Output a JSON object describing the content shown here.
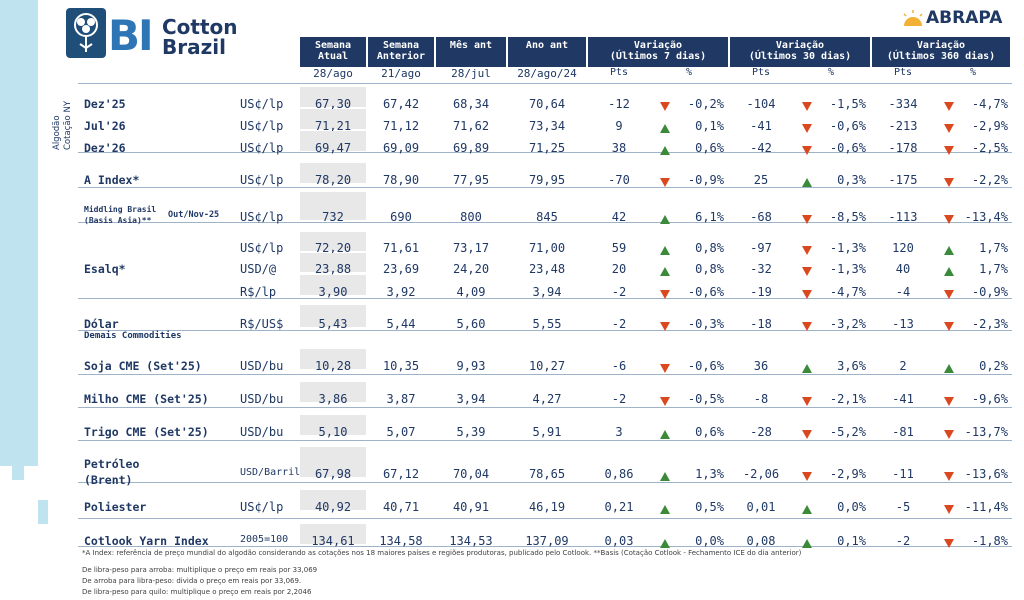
{
  "brand": {
    "logo_bi": "BI",
    "logo_line1": "Cotton",
    "logo_line2": "Brazil",
    "partner": "ABRAPA"
  },
  "side_label": [
    "Algodão",
    "Cotação NY"
  ],
  "columns": {
    "price": [
      {
        "title1": "Semana",
        "title2": "Atual",
        "date": "28/ago"
      },
      {
        "title1": "Semana",
        "title2": "Anterior",
        "date": "21/ago"
      },
      {
        "title1": "Mês ant",
        "title2": "",
        "date": "28/jul"
      },
      {
        "title1": "Ano ant",
        "title2": "",
        "date": "28/ago/24"
      }
    ],
    "variation": [
      {
        "title": "Variação",
        "sub": "(Últimos 7 dias)",
        "pts": "Pts",
        "pct": "%"
      },
      {
        "title": "Variação",
        "sub": "(Últimos 30 dias)",
        "pts": "Pts",
        "pct": "%"
      },
      {
        "title": "Variação",
        "sub": "(Últimos 360 dias)",
        "pts": "Pts",
        "pct": "%"
      }
    ]
  },
  "rows": [
    {
      "label": "Dez'25",
      "unit": "US¢/lp",
      "vals": [
        "67,30",
        "67,42",
        "68,34",
        "70,64"
      ],
      "var": [
        [
          "-12",
          "down",
          "-0,2%"
        ],
        [
          "-104",
          "down",
          "-1,5%"
        ],
        [
          "-334",
          "down",
          "-4,7%"
        ]
      ]
    },
    {
      "label": "Jul'26",
      "unit": "US¢/lp",
      "vals": [
        "71,21",
        "71,12",
        "71,62",
        "73,34"
      ],
      "var": [
        [
          "9",
          "up",
          "0,1%"
        ],
        [
          "-41",
          "down",
          "-0,6%"
        ],
        [
          "-213",
          "down",
          "-2,9%"
        ]
      ]
    },
    {
      "label": "Dez'26",
      "unit": "US¢/lp",
      "vals": [
        "69,47",
        "69,09",
        "69,89",
        "71,25"
      ],
      "var": [
        [
          "38",
          "up",
          "0,6%"
        ],
        [
          "-42",
          "down",
          "-0,6%"
        ],
        [
          "-178",
          "down",
          "-2,5%"
        ]
      ]
    },
    {
      "label": "A Index*",
      "unit": "US¢/lp",
      "vals": [
        "78,20",
        "78,90",
        "77,95",
        "79,95"
      ],
      "var": [
        [
          "-70",
          "down",
          "-0,9%"
        ],
        [
          "25",
          "up",
          "0,3%"
        ],
        [
          "-175",
          "down",
          "-2,2%"
        ]
      ]
    },
    {
      "label": "Middling Brasil",
      "label2": "(Basis Asia)**",
      "label3": "Out/Nov-25",
      "unit": "US¢/lp",
      "vals": [
        "732",
        "690",
        "800",
        "845"
      ],
      "var": [
        [
          "42",
          "up",
          "6,1%"
        ],
        [
          "-68",
          "down",
          "-8,5%"
        ],
        [
          "-113",
          "down",
          "-13,4%"
        ]
      ]
    },
    {
      "label": "",
      "unit": "US¢/lp",
      "vals": [
        "72,20",
        "71,61",
        "73,17",
        "71,00"
      ],
      "var": [
        [
          "59",
          "up",
          "0,8%"
        ],
        [
          "-97",
          "down",
          "-1,3%"
        ],
        [
          "120",
          "up",
          "1,7%"
        ]
      ]
    },
    {
      "label": "Esalq*",
      "unit": "USD/@",
      "vals": [
        "23,88",
        "23,69",
        "24,20",
        "23,48"
      ],
      "var": [
        [
          "20",
          "up",
          "0,8%"
        ],
        [
          "-32",
          "down",
          "-1,3%"
        ],
        [
          "40",
          "up",
          "1,7%"
        ]
      ]
    },
    {
      "label": "",
      "unit": "R$/lp",
      "vals": [
        "3,90",
        "3,92",
        "4,09",
        "3,94"
      ],
      "var": [
        [
          "-2",
          "down",
          "-0,6%"
        ],
        [
          "-19",
          "down",
          "-4,7%"
        ],
        [
          "-4",
          "down",
          "-0,9%"
        ]
      ]
    },
    {
      "label": "Dólar",
      "unit": "R$/US$",
      "vals": [
        "5,43",
        "5,44",
        "5,60",
        "5,55"
      ],
      "var": [
        [
          "-2",
          "down",
          "-0,3%"
        ],
        [
          "-18",
          "down",
          "-3,2%"
        ],
        [
          "-13",
          "down",
          "-2,3%"
        ]
      ]
    },
    {
      "label": "Soja CME (Set'25)",
      "unit": "USD/bu",
      "vals": [
        "10,28",
        "10,35",
        "9,93",
        "10,27"
      ],
      "var": [
        [
          "-6",
          "down",
          "-0,6%"
        ],
        [
          "36",
          "up",
          "3,6%"
        ],
        [
          "2",
          "up",
          "0,2%"
        ]
      ]
    },
    {
      "label": "Milho CME (Set'25)",
      "unit": "USD/bu",
      "vals": [
        "3,86",
        "3,87",
        "3,94",
        "4,27"
      ],
      "var": [
        [
          "-2",
          "down",
          "-0,5%"
        ],
        [
          "-8",
          "down",
          "-2,1%"
        ],
        [
          "-41",
          "down",
          "-9,6%"
        ]
      ]
    },
    {
      "label": "Trigo CME (Set'25)",
      "unit": "USD/bu",
      "vals": [
        "5,10",
        "5,07",
        "5,39",
        "5,91"
      ],
      "var": [
        [
          "3",
          "up",
          "0,6%"
        ],
        [
          "-28",
          "down",
          "-5,2%"
        ],
        [
          "-81",
          "down",
          "-13,7%"
        ]
      ]
    },
    {
      "label": "Petróleo",
      "label2": "(Brent)",
      "unit": "USD/Barril",
      "vals": [
        "67,98",
        "67,12",
        "70,04",
        "78,65"
      ],
      "var": [
        [
          "0,86",
          "up",
          "1,3%"
        ],
        [
          "-2,06",
          "down",
          "-2,9%"
        ],
        [
          "-11",
          "down",
          "-13,6%"
        ]
      ]
    },
    {
      "label": "Poliester",
      "unit": "US¢/lp",
      "vals": [
        "40,92",
        "40,71",
        "40,91",
        "46,19"
      ],
      "var": [
        [
          "0,21",
          "up",
          "0,5%"
        ],
        [
          "0,01",
          "up",
          "0,0%"
        ],
        [
          "-5",
          "down",
          "-11,4%"
        ]
      ]
    },
    {
      "label": "Cotlook Yarn Index",
      "unit": "2005=100",
      "vals": [
        "134,61",
        "134,58",
        "134,53",
        "137,09"
      ],
      "var": [
        [
          "0,03",
          "up",
          "0,0%"
        ],
        [
          "0,08",
          "up",
          "0,1%"
        ],
        [
          "-2",
          "down",
          "-1,8%"
        ]
      ]
    }
  ],
  "section_other": "Demais Commodities",
  "footnotes": [
    "*A Index: referência de preço mundial do algodão considerando as cotações nos 18 maiores países e regiões produtoras, publicado pelo Cotlook. **Basis (Cotação Cotlook - Fechamento ICE do dia anterior)",
    "De libra-peso para arroba: multiplique o preço em reais por 33,069",
    "De arroba para libra-peso: divida o preço em reais por 33,069.",
    "De libra-peso para quilo: multiplique o preço em reais por 2,2046"
  ],
  "colors": {
    "header_bg": "#1f3864",
    "text": "#1f3864",
    "up": "#3a8a3a",
    "down": "#d9481e",
    "shade": "#e8e8e8",
    "accent": "#bfe3ef"
  }
}
